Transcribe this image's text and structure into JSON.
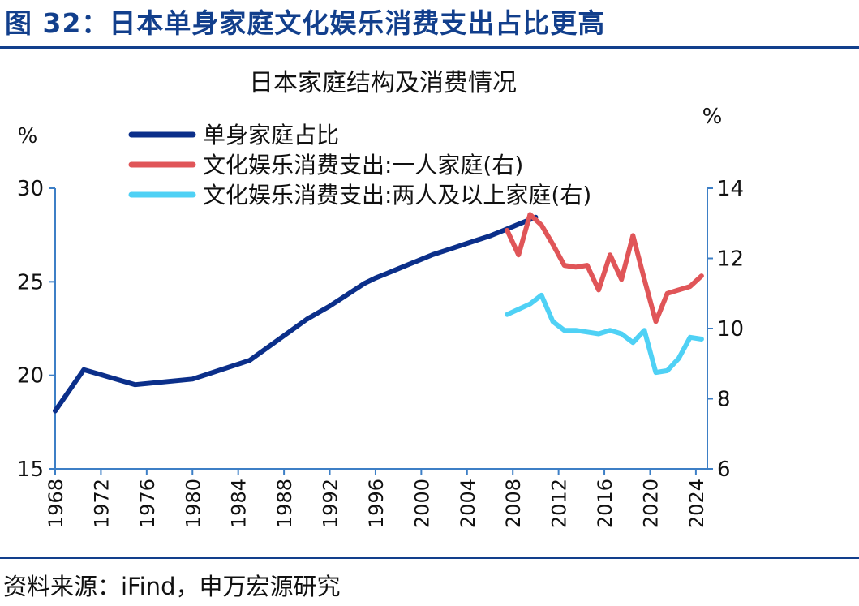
{
  "figure_title": "图 32：日本单身家庭文化娱乐消费支出占比更高",
  "source_note": "资料来源：iFind，申万宏源研究",
  "chart_data": {
    "type": "line",
    "title": "日本家庭结构及消费情况",
    "left_axis": {
      "unit": "%",
      "ylim": [
        15,
        30
      ],
      "ticks": [
        15,
        20,
        25,
        30
      ]
    },
    "right_axis": {
      "unit": "%",
      "ylim": [
        6,
        14
      ],
      "ticks": [
        6,
        8,
        10,
        12,
        14
      ]
    },
    "x_ticks": [
      "1968",
      "1972",
      "1976",
      "1980",
      "1984",
      "1988",
      "1992",
      "1996",
      "2000",
      "2004",
      "2008",
      "2012",
      "2016",
      "2020",
      "2024"
    ],
    "xlim": [
      1968,
      2025
    ],
    "series": [
      {
        "name": "单身家庭占比",
        "axis": "left",
        "color": "#0b2f8a",
        "x": [
          1968,
          1970.5,
          1975,
          1980,
          1985,
          1990,
          1992,
          1993,
          1994,
          1995,
          1996,
          1997,
          1998,
          1999,
          2000,
          2001,
          2002,
          2003,
          2004,
          2005,
          2006,
          2007,
          2008,
          2009,
          2010
        ],
        "values": [
          18.1,
          20.3,
          19.5,
          19.8,
          20.8,
          23.0,
          23.7,
          24.1,
          24.5,
          24.9,
          25.2,
          25.45,
          25.7,
          25.95,
          26.2,
          26.45,
          26.65,
          26.85,
          27.05,
          27.25,
          27.45,
          27.7,
          27.95,
          28.2,
          28.45
        ]
      },
      {
        "name": "文化娱乐消费支出:一人家庭(右)",
        "axis": "right",
        "color": "#e05558",
        "x": [
          2007.5,
          2008.5,
          2009.5,
          2010.5,
          2011.5,
          2012.5,
          2013.5,
          2014.5,
          2015.5,
          2016.5,
          2017.5,
          2018.5,
          2019.5,
          2020.5,
          2021.5,
          2022.5,
          2023.5,
          2024.5
        ],
        "values": [
          12.8,
          12.1,
          13.25,
          12.95,
          12.4,
          11.8,
          11.75,
          11.8,
          11.1,
          12.1,
          11.4,
          12.65,
          11.4,
          10.2,
          11.0,
          11.1,
          11.2,
          11.5
        ]
      },
      {
        "name": "文化娱乐消费支出:两人及以上家庭(右)",
        "axis": "right",
        "color": "#4fd1f5",
        "x": [
          2007.5,
          2008.5,
          2009.5,
          2010.5,
          2011.5,
          2012.5,
          2013.5,
          2014.5,
          2015.5,
          2016.5,
          2017.5,
          2018.5,
          2019.5,
          2020.5,
          2021.5,
          2022.5,
          2023.5,
          2024.5
        ],
        "values": [
          10.4,
          10.55,
          10.7,
          10.95,
          10.2,
          9.95,
          9.95,
          9.9,
          9.85,
          9.95,
          9.85,
          9.6,
          9.95,
          8.75,
          8.8,
          9.15,
          9.75,
          9.7
        ]
      }
    ]
  }
}
